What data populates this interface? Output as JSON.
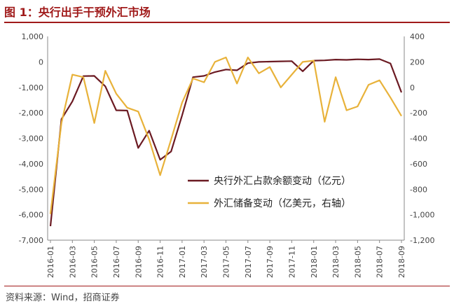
{
  "header": {
    "title": "图 1：央行出手干预外汇市场"
  },
  "footer": {
    "source": "资料来源：Wind，招商证券"
  },
  "colors": {
    "series1": "#6b1a22",
    "series2": "#e8b23a",
    "title": "#a01a1a"
  },
  "chart_data": {
    "type": "line",
    "x": [
      "2016-01",
      "2016-02",
      "2016-03",
      "2016-04",
      "2016-05",
      "2016-06",
      "2016-07",
      "2016-08",
      "2016-09",
      "2016-10",
      "2016-11",
      "2016-12",
      "2017-01",
      "2017-02",
      "2017-03",
      "2017-04",
      "2017-05",
      "2017-06",
      "2017-07",
      "2017-08",
      "2017-09",
      "2017-10",
      "2017-11",
      "2017-12",
      "2018-01",
      "2018-02",
      "2018-03",
      "2018-04",
      "2018-05",
      "2018-06",
      "2018-07",
      "2018-08",
      "2018-09"
    ],
    "x_tick_labels": [
      "2016-01",
      "2016-03",
      "2016-05",
      "2016-07",
      "2016-09",
      "2016-11",
      "2017-01",
      "2017-03",
      "2017-05",
      "2017-07",
      "2017-09",
      "2017-11",
      "2018-01",
      "2018-03",
      "2018-05",
      "2018-07",
      "2018-09"
    ],
    "y_left": {
      "min": -7000,
      "max": 1000,
      "ticks": [
        1000,
        0,
        -1000,
        -2000,
        -3000,
        -4000,
        -5000,
        -6000,
        -7000
      ],
      "tick_labels": [
        "1,000",
        "0",
        "-1,000",
        "-2,000",
        "-3,000",
        "-4,000",
        "-5,000",
        "-6,000",
        "-7,000"
      ]
    },
    "y_right": {
      "min": -1200,
      "max": 400,
      "ticks": [
        400,
        200,
        0,
        -200,
        -400,
        -600,
        -800,
        -1000,
        -1200
      ],
      "tick_labels": [
        "400",
        "200",
        "0",
        "-200",
        "-400",
        "-600",
        "-800",
        "-1,000",
        "-1,200"
      ]
    },
    "series": [
      {
        "name": "央行外汇占款余额变动（亿元）",
        "axis": "left",
        "values": [
          -6450,
          -2250,
          -1550,
          -560,
          -550,
          -960,
          -1900,
          -1910,
          -3380,
          -2700,
          -3840,
          -3520,
          -2100,
          -600,
          -550,
          -400,
          -300,
          -330,
          -50,
          0,
          10,
          20,
          30,
          -370,
          50,
          60,
          90,
          80,
          100,
          90,
          110,
          -60,
          -1200
        ]
      },
      {
        "name": "外汇储备变动（亿美元，右轴）",
        "axis": "right",
        "values": [
          -995,
          -280,
          100,
          80,
          -280,
          130,
          -50,
          -160,
          -190,
          -410,
          -690,
          -410,
          -120,
          70,
          40,
          200,
          235,
          30,
          235,
          110,
          160,
          0,
          100,
          200,
          210,
          -270,
          80,
          -180,
          -150,
          20,
          55,
          -80,
          -225
        ]
      }
    ],
    "legend_position": "center-right",
    "grid": false
  }
}
